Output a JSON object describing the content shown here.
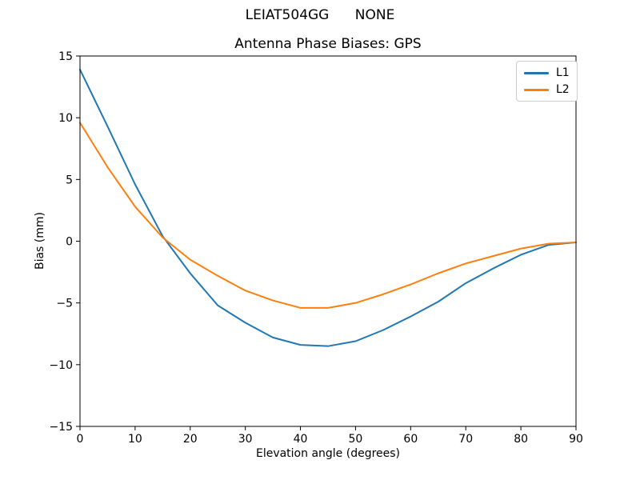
{
  "figure": {
    "background": "#ffffff",
    "suptitle": "LEIAT504GG      NONE"
  },
  "chart_data": {
    "type": "line",
    "title": "Antenna Phase Biases: GPS",
    "xlabel": "Elevation angle (degrees)",
    "ylabel": "Bias (mm)",
    "xlim": [
      0,
      90
    ],
    "ylim": [
      -15,
      15
    ],
    "xticks": [
      0,
      10,
      20,
      30,
      40,
      50,
      60,
      70,
      80,
      90
    ],
    "yticks": [
      -15,
      -10,
      -5,
      0,
      5,
      10,
      15
    ],
    "grid": false,
    "legend_position": "upper right",
    "x": [
      0,
      5,
      10,
      15,
      20,
      25,
      30,
      35,
      40,
      45,
      50,
      55,
      60,
      65,
      70,
      75,
      80,
      85,
      90
    ],
    "series": [
      {
        "name": "L1",
        "color": "#1f77b4",
        "values": [
          13.9,
          9.3,
          4.6,
          0.4,
          -2.6,
          -5.2,
          -6.6,
          -7.8,
          -8.4,
          -8.5,
          -8.1,
          -7.2,
          -6.1,
          -4.9,
          -3.4,
          -2.2,
          -1.1,
          -0.3,
          -0.1
        ]
      },
      {
        "name": "L2",
        "color": "#ff7f0e",
        "values": [
          9.6,
          6.0,
          2.8,
          0.3,
          -1.5,
          -2.8,
          -4.0,
          -4.8,
          -5.4,
          -5.4,
          -5.0,
          -4.3,
          -3.5,
          -2.6,
          -1.8,
          -1.2,
          -0.6,
          -0.2,
          -0.1
        ]
      }
    ]
  }
}
